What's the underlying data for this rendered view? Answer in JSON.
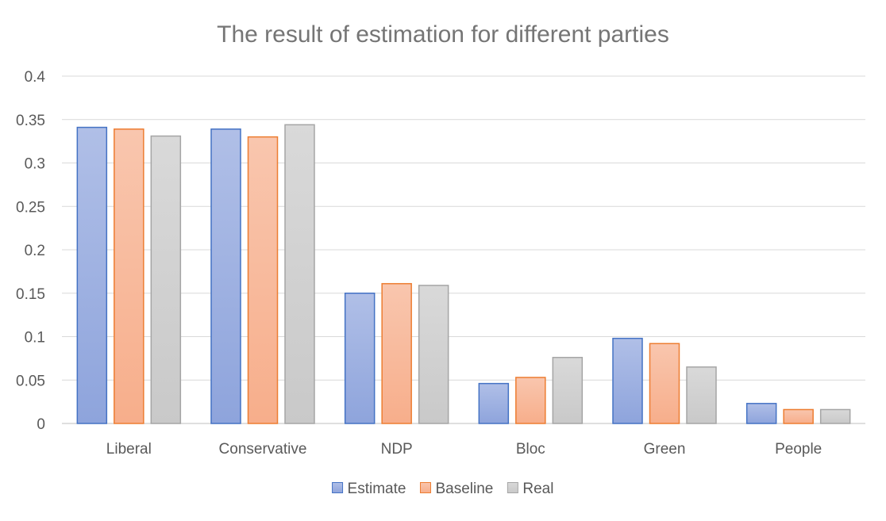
{
  "chart_data": {
    "type": "bar",
    "title": "The result of estimation for different parties",
    "xlabel": "",
    "ylabel": "",
    "categories": [
      "Liberal",
      "Conservative",
      "NDP",
      "Bloc",
      "Green",
      "People"
    ],
    "series": [
      {
        "name": "Estimate",
        "values": [
          0.341,
          0.339,
          0.15,
          0.046,
          0.098,
          0.023
        ],
        "color": "#8EA4DC",
        "stroke": "#4472C4"
      },
      {
        "name": "Baseline",
        "values": [
          0.339,
          0.33,
          0.161,
          0.053,
          0.092,
          0.016
        ],
        "color": "#F7AE8B",
        "stroke": "#ED7D31"
      },
      {
        "name": "Real",
        "values": [
          0.331,
          0.344,
          0.159,
          0.076,
          0.065,
          0.016
        ],
        "color": "#C9C9C9",
        "stroke": "#A5A5A5"
      }
    ],
    "ylim": [
      0,
      0.4
    ],
    "yticks": [
      "0",
      "0.05",
      "0.1",
      "0.15",
      "0.2",
      "0.25",
      "0.3",
      "0.35",
      "0.4"
    ],
    "grid": true,
    "legend_position": "bottom"
  }
}
